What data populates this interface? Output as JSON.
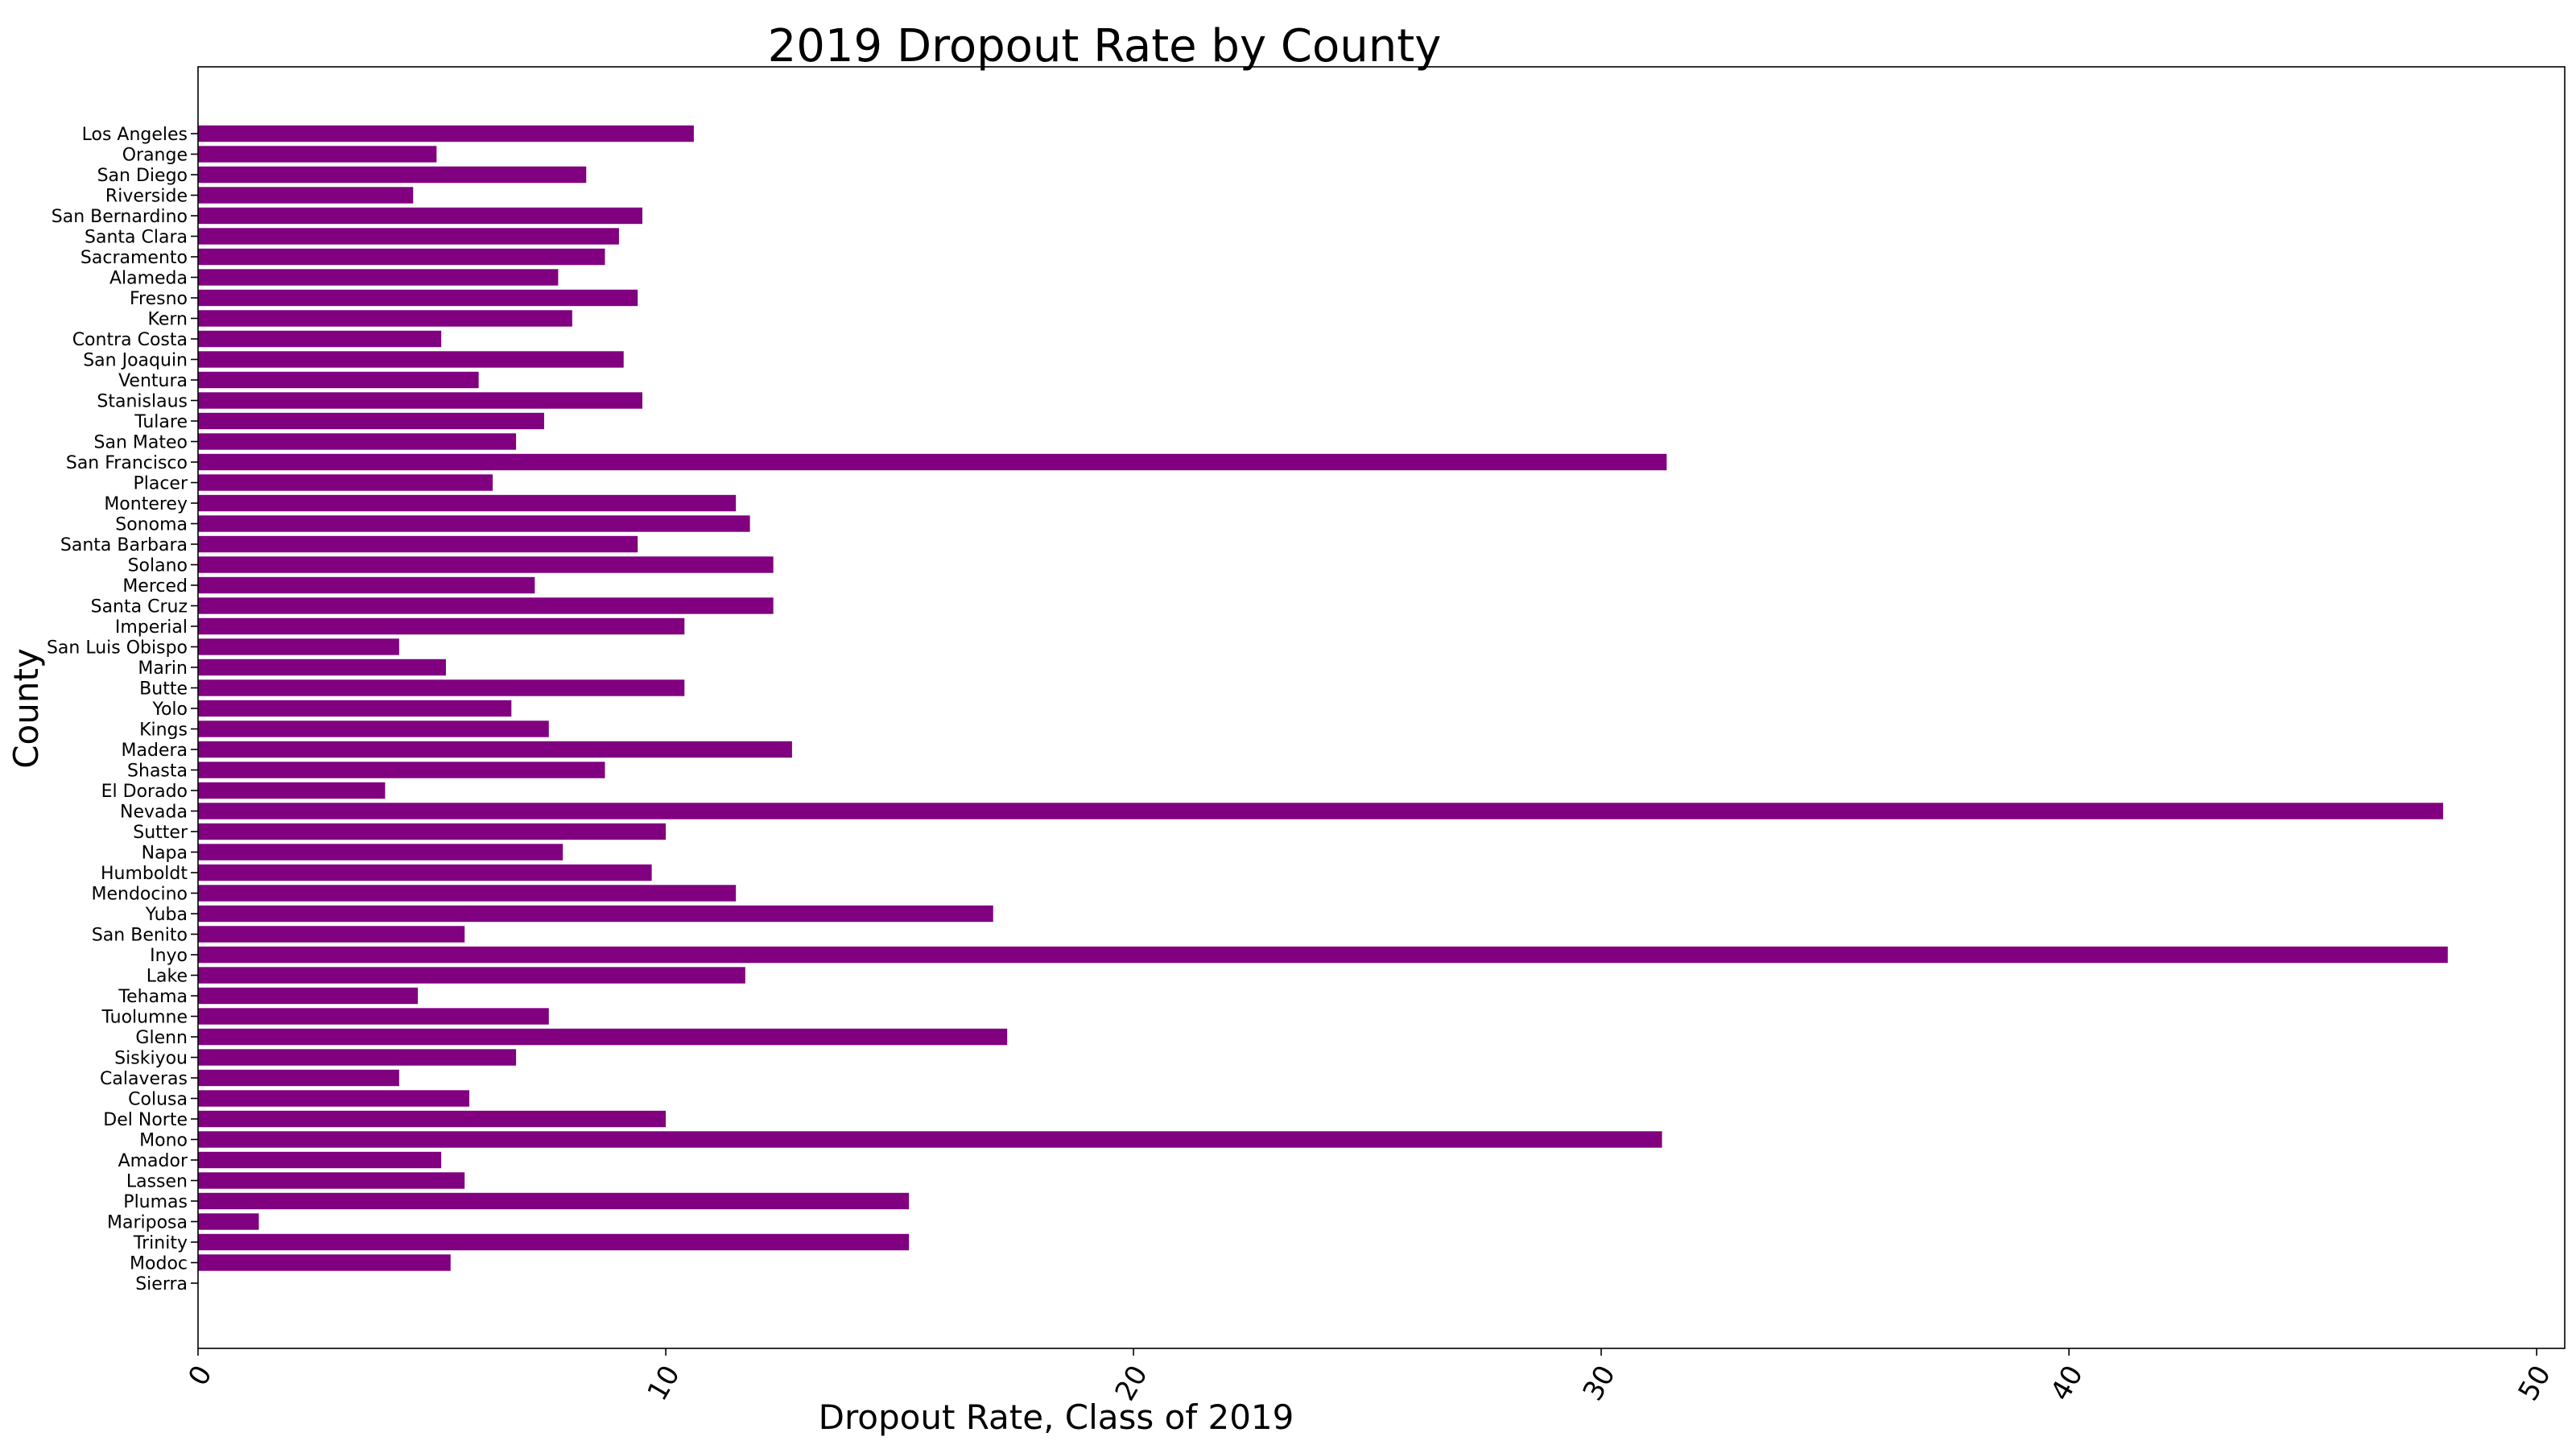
{
  "chart_data": {
    "type": "bar",
    "orientation": "horizontal",
    "title": "2019 Dropout Rate by County",
    "xlabel": "Dropout Rate, Class of 2019",
    "ylabel": "County",
    "xlim": [
      0,
      50.6
    ],
    "x_ticks": [
      0,
      10,
      20,
      30,
      40,
      50
    ],
    "x_tick_labels": [
      "0",
      "10",
      "20",
      "30",
      "40",
      "50"
    ],
    "x_tick_rotation_deg": 60,
    "grid": false,
    "bar_color": "#800080",
    "categories": [
      "Los Angeles",
      "Orange",
      "San Diego",
      "Riverside",
      "San Bernardino",
      "Santa Clara",
      "Sacramento",
      "Alameda",
      "Fresno",
      "Kern",
      "Contra Costa",
      "San Joaquin",
      "Ventura",
      "Stanislaus",
      "Tulare",
      "San Mateo",
      "San Francisco",
      "Placer",
      "Monterey",
      "Sonoma",
      "Santa Barbara",
      "Solano",
      "Merced",
      "Santa Cruz",
      "Imperial",
      "San Luis Obispo",
      "Marin",
      "Butte",
      "Yolo",
      "Kings",
      "Madera",
      "Shasta",
      "El Dorado",
      "Nevada",
      "Sutter",
      "Napa",
      "Humboldt",
      "Mendocino",
      "Yuba",
      "San Benito",
      "Inyo",
      "Lake",
      "Tehama",
      "Tuolumne",
      "Glenn",
      "Siskiyou",
      "Calaveras",
      "Colusa",
      "Del Norte",
      "Mono",
      "Amador",
      "Lassen",
      "Plumas",
      "Mariposa",
      "Trinity",
      "Modoc",
      "Sierra"
    ],
    "values": [
      10.6,
      5.1,
      8.3,
      4.6,
      9.5,
      9.0,
      8.7,
      7.7,
      9.4,
      8.0,
      5.2,
      9.1,
      6.0,
      9.5,
      7.4,
      6.8,
      31.4,
      6.3,
      11.5,
      11.8,
      9.4,
      12.3,
      7.2,
      12.3,
      10.4,
      4.3,
      5.3,
      10.4,
      6.7,
      7.5,
      12.7,
      8.7,
      4.0,
      48.0,
      10.0,
      7.8,
      9.7,
      11.5,
      17.0,
      5.7,
      48.1,
      11.7,
      4.7,
      7.5,
      17.3,
      6.8,
      4.3,
      5.8,
      10.0,
      31.3,
      5.2,
      5.7,
      15.2,
      1.3,
      15.2,
      5.4,
      0.0
    ]
  }
}
